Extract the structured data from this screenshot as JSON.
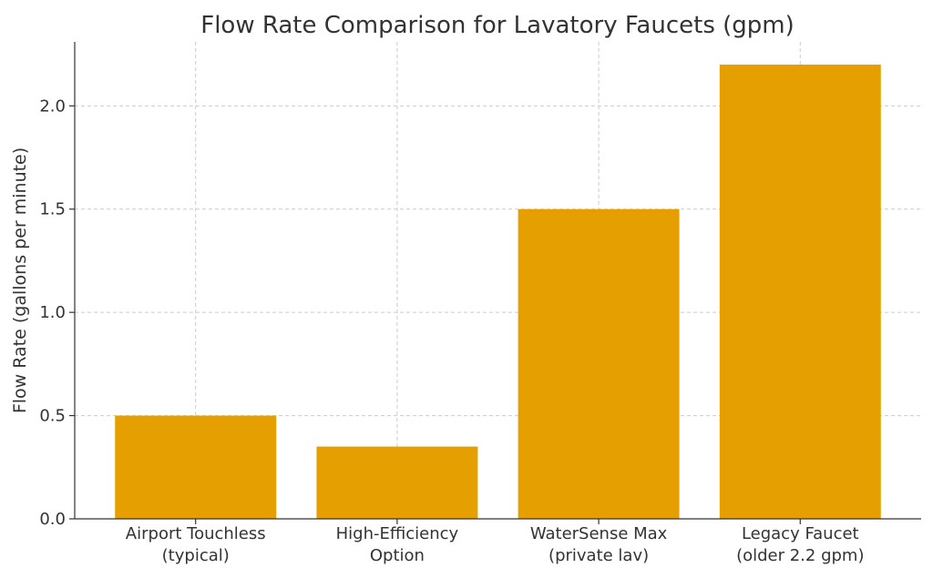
{
  "chart_data": {
    "type": "bar",
    "title": "Flow Rate Comparison for Lavatory Faucets (gpm)",
    "xlabel": "",
    "ylabel": "Flow Rate (gallons per minute)",
    "categories": [
      [
        "Airport Touchless",
        "(typical)"
      ],
      [
        "High-Efficiency",
        "Option"
      ],
      [
        "WaterSense Max",
        "(private lav)"
      ],
      [
        "Legacy Faucet",
        "(older 2.2 gpm)"
      ]
    ],
    "values": [
      0.5,
      0.35,
      1.5,
      2.2
    ],
    "ylim": [
      0,
      2.31
    ],
    "yticks": [
      0.0,
      0.5,
      1.0,
      1.5,
      2.0
    ],
    "ytick_labels": [
      "0.0",
      "0.5",
      "1.0",
      "1.5",
      "2.0"
    ],
    "grid": true,
    "bar_color": "#E69F00"
  }
}
